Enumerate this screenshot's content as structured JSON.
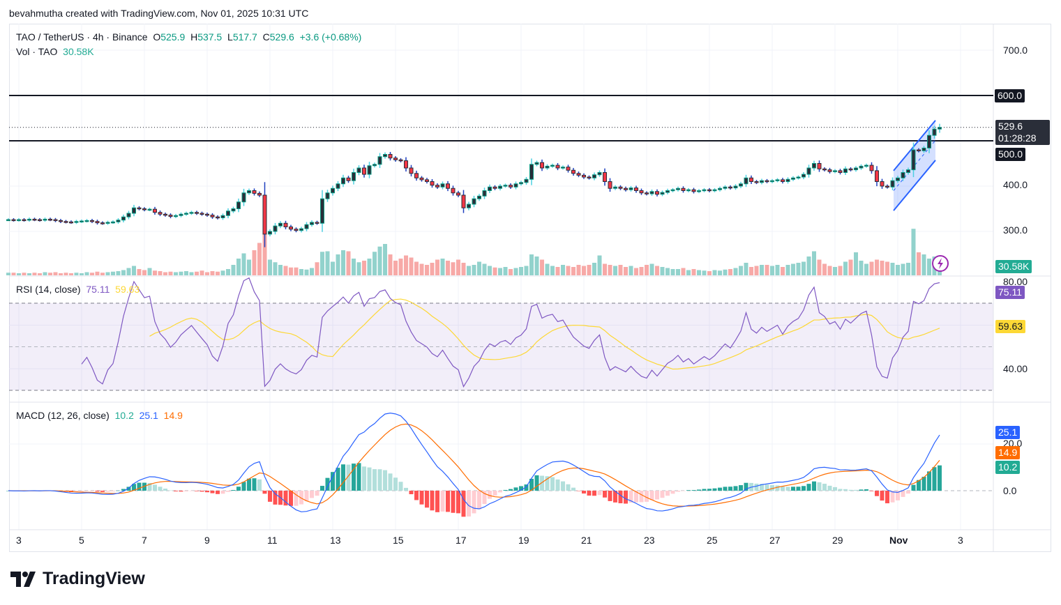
{
  "credit": "bevahmutha created with TradingView.com, Nov 01, 2025 10:31 UTC",
  "legend": {
    "symbol": "TAO / TetherUS · 4h · Binance",
    "o_label": "O",
    "o": "525.9",
    "h_label": "H",
    "h": "537.5",
    "l_label": "L",
    "l": "517.7",
    "c_label": "C",
    "c": "529.6",
    "change": "+3.6 (+0.68%)",
    "vol_label": "Vol · TAO",
    "vol": "30.58K"
  },
  "rsi_legend": {
    "label": "RSI (14, close)",
    "rsi": "75.11",
    "ma": "59.63"
  },
  "macd_legend": {
    "label": "MACD (12, 26, close)",
    "hist": "10.2",
    "macd": "25.1",
    "signal": "14.9"
  },
  "price_axis": {
    "ticks": [
      "700.0",
      "600.0",
      "500.0",
      "400.0",
      "300.0"
    ],
    "last_price": "529.6",
    "countdown": "01:28:28",
    "level_600": "600.0",
    "level_500": "500.0",
    "vol_tag": "30.58K"
  },
  "rsi_axis": {
    "ticks": [
      "80.00",
      "40.00"
    ],
    "rsi_tag": "75.11",
    "ma_tag": "59.63"
  },
  "macd_axis": {
    "ticks": [
      "20.0",
      "0.0"
    ],
    "macd_tag": "25.1",
    "signal_tag": "14.9",
    "hist_tag": "10.2"
  },
  "time_axis": [
    "3",
    "5",
    "7",
    "9",
    "11",
    "13",
    "15",
    "17",
    "19",
    "21",
    "23",
    "25",
    "27",
    "29",
    "Nov",
    "3"
  ],
  "logo_text": "TradingView",
  "colors": {
    "up": "#089981",
    "down": "#f23645",
    "rsi": "#7e57c2",
    "rsi_ma": "#fdd835",
    "macd": "#2962ff",
    "signal": "#ff6d00",
    "channel": "#2962ff",
    "levels": "#131722"
  },
  "chart_data": {
    "type": "candlestick",
    "symbol": "TAO / TetherUS",
    "interval": "4h",
    "price_range": [
      250,
      760
    ],
    "horizontal_levels": [
      600,
      500
    ],
    "channel": {
      "upper": [
        434,
        545
      ],
      "lower": [
        346,
        457
      ]
    },
    "closes": [
      326,
      325,
      326,
      325,
      327,
      326,
      325,
      327,
      326,
      324,
      322,
      321,
      320,
      322,
      323,
      324,
      322,
      319,
      318,
      320,
      321,
      325,
      332,
      340,
      352,
      350,
      348,
      349,
      342,
      338,
      336,
      333,
      335,
      338,
      340,
      342,
      340,
      338,
      336,
      332,
      330,
      335,
      345,
      350,
      365,
      385,
      390,
      384,
      380,
      294,
      300,
      312,
      318,
      310,
      305,
      302,
      306,
      315,
      320,
      318,
      372,
      385,
      395,
      405,
      418,
      412,
      430,
      440,
      426,
      445,
      448,
      465,
      470,
      462,
      458,
      456,
      440,
      428,
      418,
      414,
      410,
      402,
      398,
      405,
      395,
      385,
      380,
      352,
      360,
      372,
      378,
      390,
      398,
      395,
      400,
      402,
      398,
      405,
      408,
      415,
      448,
      452,
      440,
      444,
      446,
      440,
      442,
      435,
      428,
      424,
      420,
      418,
      425,
      430,
      410,
      395,
      398,
      395,
      392,
      396,
      390,
      385,
      383,
      388,
      382,
      386,
      390,
      392,
      395,
      390,
      392,
      388,
      390,
      392,
      390,
      392,
      395,
      398,
      396,
      400,
      405,
      418,
      410,
      408,
      412,
      410,
      412,
      414,
      410,
      415,
      418,
      420,
      426,
      440,
      450,
      438,
      436,
      432,
      434,
      430,
      438,
      436,
      440,
      444,
      446,
      434,
      410,
      400,
      398,
      412,
      418,
      430,
      436,
      480,
      478,
      484,
      512,
      525.9,
      529.6
    ],
    "volumes_k": [
      5,
      5,
      4,
      5,
      4,
      5,
      4,
      6,
      5,
      6,
      4,
      5,
      4,
      5,
      4,
      6,
      5,
      7,
      5,
      6,
      7,
      8,
      10,
      14,
      18,
      12,
      10,
      14,
      9,
      8,
      6,
      7,
      6,
      7,
      8,
      6,
      7,
      9,
      6,
      8,
      7,
      9,
      12,
      20,
      32,
      42,
      30,
      48,
      62,
      120,
      30,
      25,
      20,
      18,
      15,
      15,
      12,
      11,
      14,
      25,
      45,
      46,
      26,
      40,
      48,
      46,
      32,
      25,
      28,
      32,
      45,
      55,
      60,
      40,
      28,
      32,
      38,
      34,
      26,
      22,
      20,
      24,
      30,
      32,
      28,
      25,
      30,
      24,
      18,
      20,
      26,
      22,
      18,
      15,
      14,
      16,
      12,
      14,
      16,
      18,
      40,
      36,
      30,
      22,
      18,
      16,
      20,
      18,
      16,
      20,
      18,
      20,
      24,
      38,
      22,
      20,
      18,
      20,
      16,
      18,
      14,
      16,
      20,
      22,
      18,
      16,
      14,
      12,
      12,
      14,
      10,
      12,
      10,
      9,
      8,
      10,
      9,
      11,
      12,
      14,
      18,
      24,
      16,
      18,
      20,
      20,
      18,
      20,
      16,
      20,
      22,
      24,
      26,
      36,
      46,
      30,
      22,
      18,
      16,
      18,
      26,
      30,
      44,
      28,
      22,
      26,
      30,
      28,
      26,
      24,
      20,
      22,
      24,
      89,
      44,
      40,
      32,
      36,
      30.58
    ],
    "last_bar": {
      "open": 525.9,
      "high": 537.5,
      "low": 517.7,
      "close": 529.6
    },
    "rsi": {
      "period": 14,
      "last": 75.11,
      "ma_last": 59.63,
      "bands": [
        70,
        50,
        30
      ]
    },
    "macd": {
      "fast": 12,
      "slow": 26,
      "last_hist": 10.2,
      "last_macd": 25.1,
      "last_signal": 14.9
    }
  }
}
